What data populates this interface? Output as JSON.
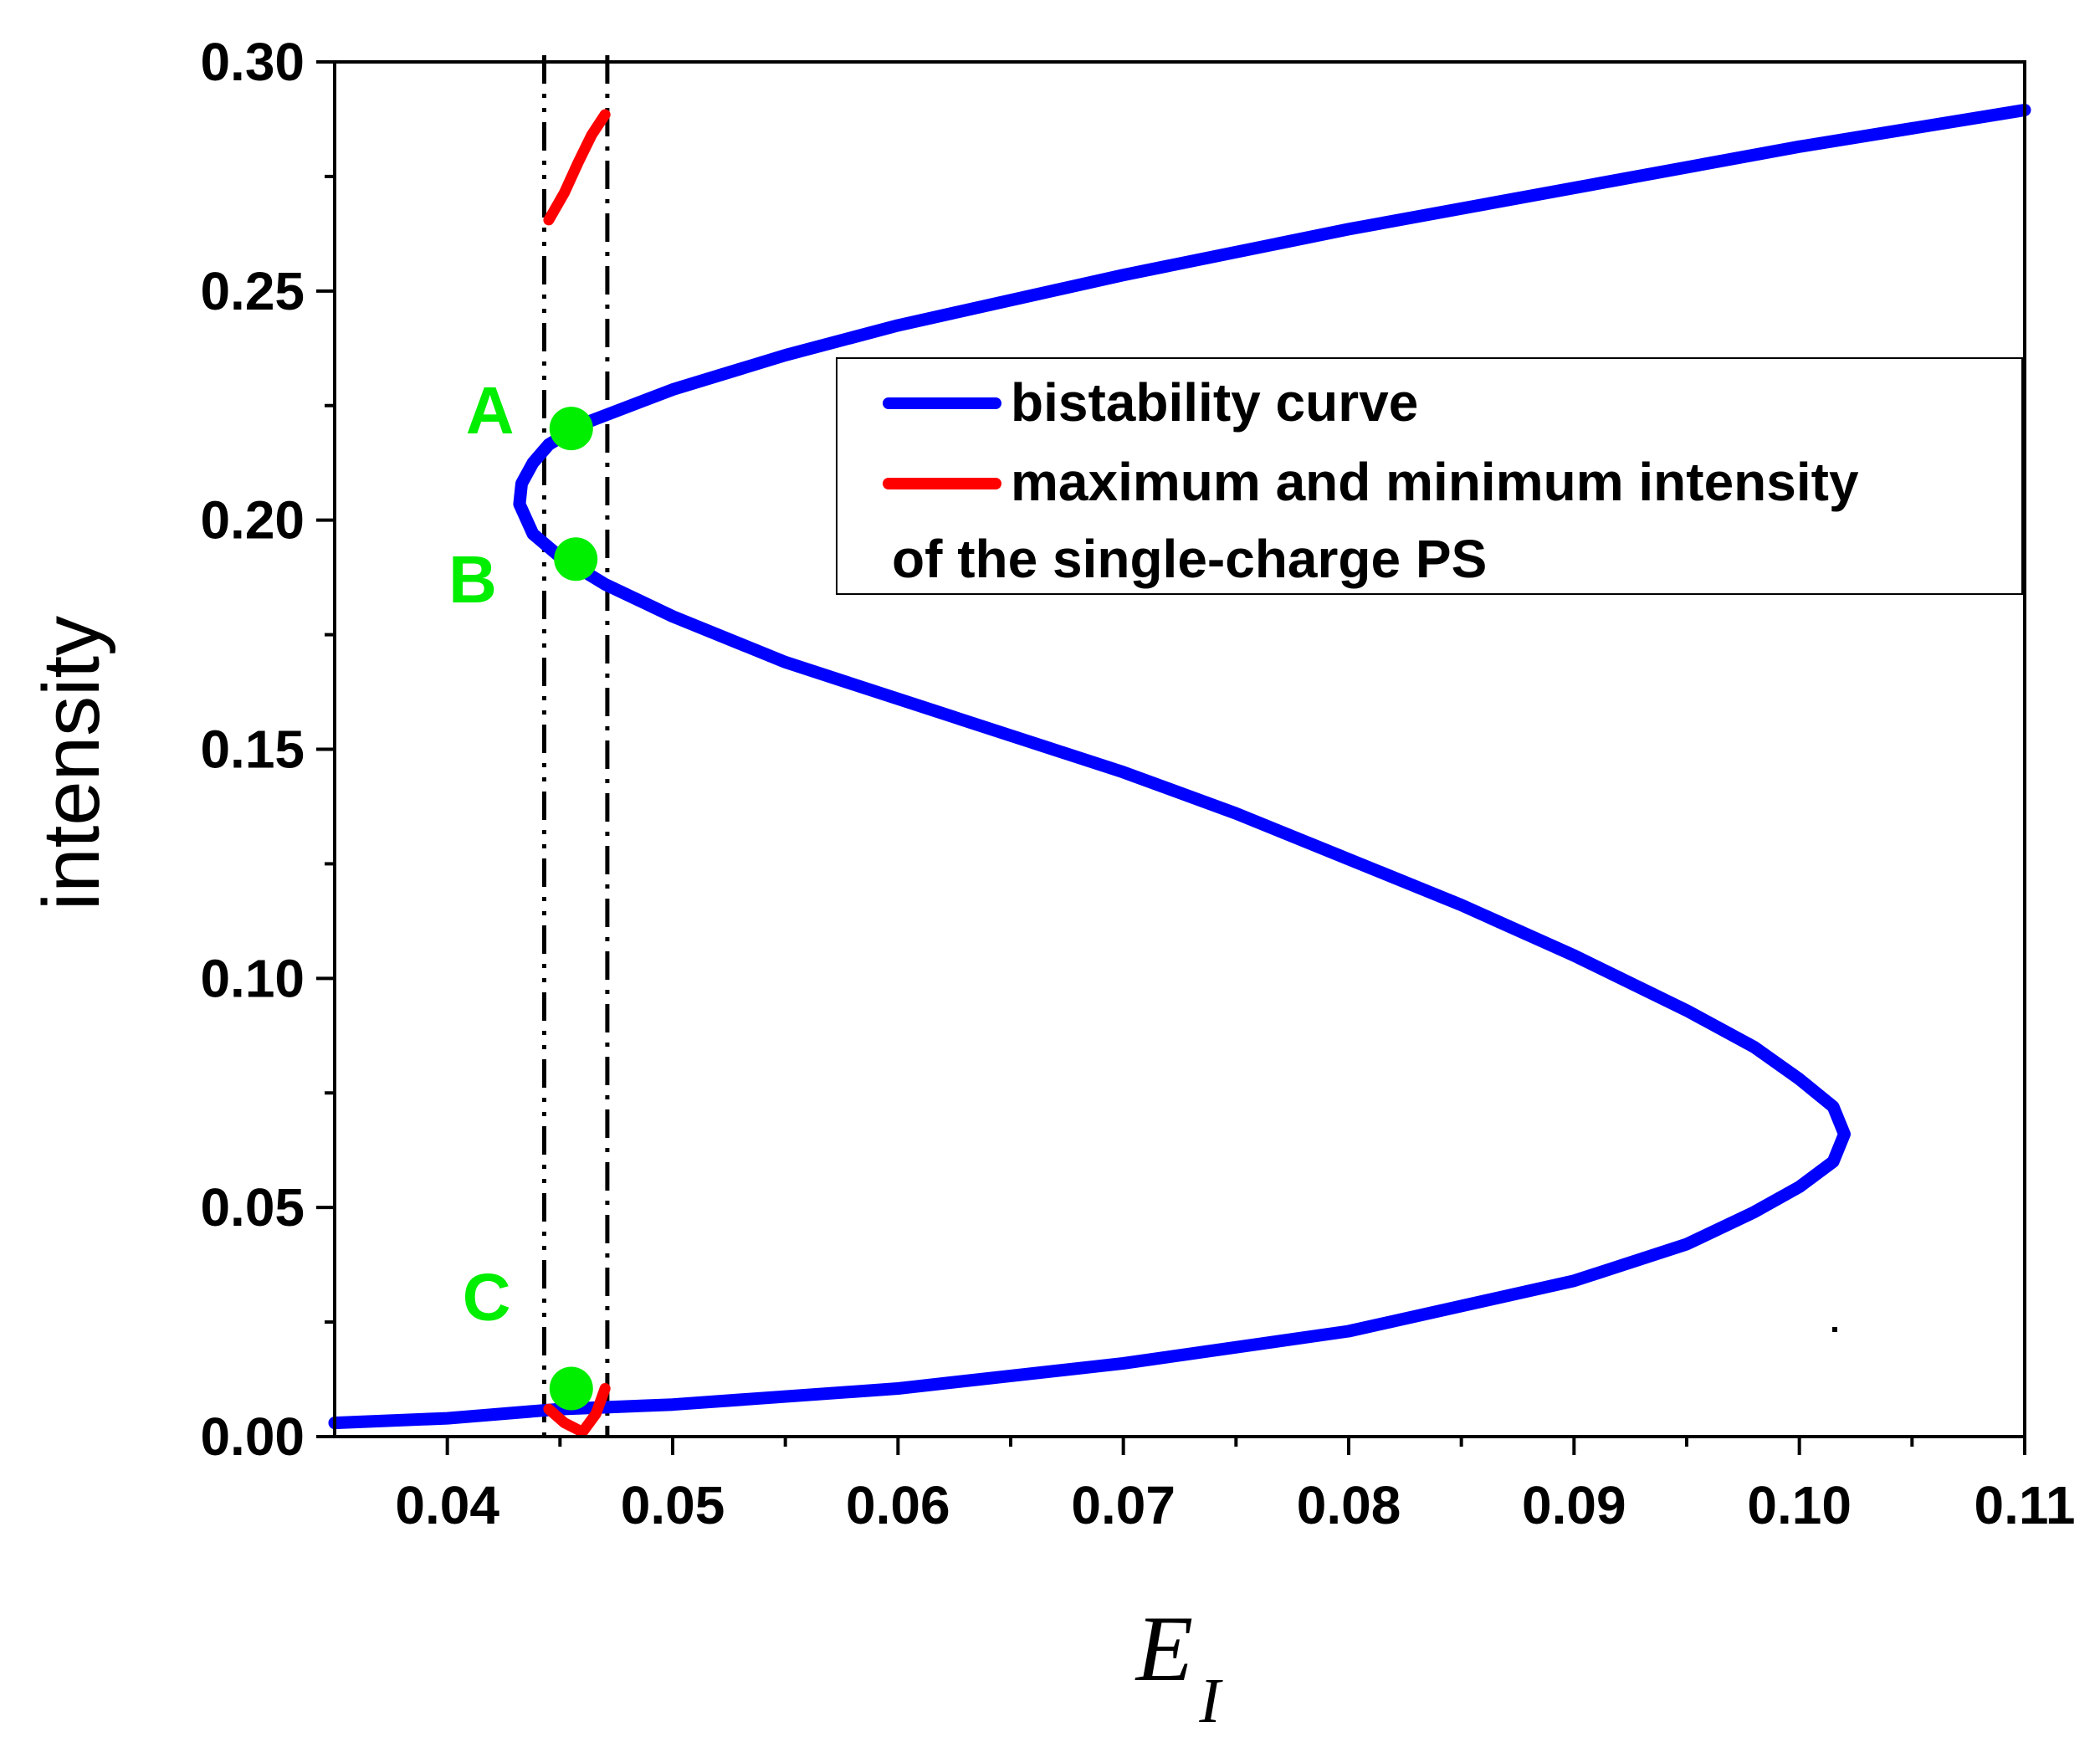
{
  "chart_data": {
    "type": "line",
    "title": "",
    "xlabel": "E",
    "xlabel_subscript": "I",
    "ylabel": "intensity",
    "xlim": [
      0.035,
      0.11
    ],
    "ylim": [
      0.0,
      0.3
    ],
    "x_ticks": [
      "0.04",
      "0.05",
      "0.06",
      "0.07",
      "0.08",
      "0.09",
      "0.10",
      "0.11"
    ],
    "y_ticks": [
      "0.00",
      "0.05",
      "0.10",
      "0.15",
      "0.20",
      "0.25",
      "0.30"
    ],
    "grid": false,
    "legend_position": "top-right",
    "series": [
      {
        "name": "bistability curve",
        "color": "#0000ff",
        "x": [
          0.035,
          0.04,
          0.045,
          0.05,
          0.06,
          0.07,
          0.08,
          0.09,
          0.095,
          0.098,
          0.1,
          0.1015,
          0.102,
          0.1015,
          0.1,
          0.098,
          0.095,
          0.09,
          0.085,
          0.08,
          0.075,
          0.07,
          0.065,
          0.06,
          0.055,
          0.05,
          0.047,
          0.045,
          0.0438,
          0.0432,
          0.0433,
          0.0438,
          0.0445,
          0.046,
          0.05,
          0.055,
          0.06,
          0.07,
          0.08,
          0.09,
          0.1,
          0.11
        ],
        "y": [
          0.003,
          0.004,
          0.006,
          0.007,
          0.0105,
          0.016,
          0.023,
          0.034,
          0.042,
          0.049,
          0.0545,
          0.06,
          0.066,
          0.072,
          0.078,
          0.085,
          0.093,
          0.105,
          0.116,
          0.126,
          0.136,
          0.145,
          0.153,
          0.161,
          0.169,
          0.179,
          0.186,
          0.192,
          0.197,
          0.2035,
          0.208,
          0.2125,
          0.2165,
          0.221,
          0.2285,
          0.236,
          0.2425,
          0.2535,
          0.2635,
          0.2725,
          0.2815,
          0.2895
        ]
      },
      {
        "name": "maximum and minimum intensity",
        "name_line2": "of the single-charge PS",
        "color": "#ff0000",
        "segments": [
          {
            "x": [
              0.0445,
              0.0452,
              0.0458,
              0.0464,
              0.047
            ],
            "y": [
              0.2655,
              0.2715,
              0.278,
              0.284,
              0.2885
            ]
          },
          {
            "x": [
              0.0445,
              0.0452,
              0.046,
              0.0466,
              0.047
            ],
            "y": [
              0.006,
              0.003,
              0.001,
              0.005,
              0.0105
            ]
          }
        ]
      }
    ],
    "markers": [
      {
        "label": "A",
        "x": 0.0455,
        "y": 0.22,
        "color": "#00ee00"
      },
      {
        "label": "B",
        "x": 0.0457,
        "y": 0.1915,
        "color": "#00ee00"
      },
      {
        "label": "C",
        "x": 0.0455,
        "y": 0.0105,
        "color": "#00ee00"
      }
    ],
    "vertical_lines": [
      {
        "x": 0.0443,
        "style": "dash-dot-dot",
        "color": "#000000"
      },
      {
        "x": 0.0471,
        "style": "dash-dot",
        "color": "#000000"
      }
    ]
  }
}
